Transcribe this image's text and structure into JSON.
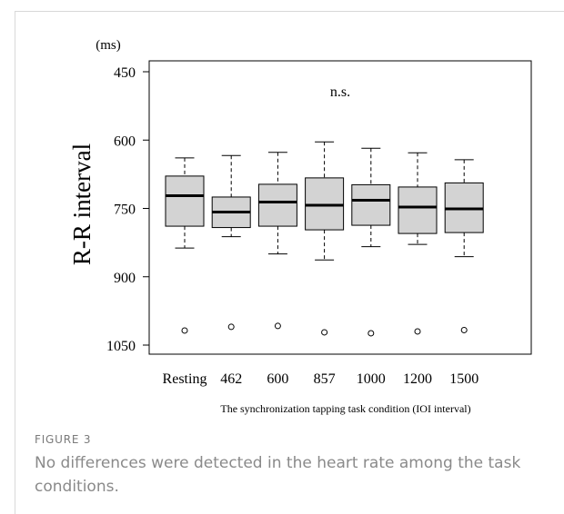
{
  "figure": {
    "label": "FIGURE 3",
    "caption": "No differences were detected in the heart rate among the task conditions."
  },
  "chart_data": {
    "type": "boxplot",
    "ylabel": "R-R interval",
    "yunit": "(ms)",
    "xlabel": "The synchronization tapping task condition (IOI interval)",
    "annotation": "n.s.",
    "ylim": [
      450,
      1070
    ],
    "y_inverted": true,
    "yticks": [
      "450",
      "600",
      "750",
      "900",
      "1050"
    ],
    "categories": [
      "Resting",
      "462",
      "600",
      "857",
      "1000",
      "1200",
      "1500"
    ],
    "boxes": [
      {
        "whisker_low": 639,
        "q1": 679,
        "median": 722,
        "q3": 789,
        "whisker_high": 837,
        "outliers": [
          1018
        ]
      },
      {
        "whisker_low": 634,
        "q1": 725,
        "median": 758,
        "q3": 792,
        "whisker_high": 812,
        "outliers": [
          1010
        ]
      },
      {
        "whisker_low": 627,
        "q1": 697,
        "median": 736,
        "q3": 789,
        "whisker_high": 850,
        "outliers": [
          1008
        ]
      },
      {
        "whisker_low": 604,
        "q1": 683,
        "median": 743,
        "q3": 797,
        "whisker_high": 863,
        "outliers": [
          1022
        ]
      },
      {
        "whisker_low": 618,
        "q1": 698,
        "median": 732,
        "q3": 787,
        "whisker_high": 834,
        "outliers": [
          1024
        ]
      },
      {
        "whisker_low": 628,
        "q1": 703,
        "median": 747,
        "q3": 805,
        "whisker_high": 829,
        "outliers": [
          1020
        ]
      },
      {
        "whisker_low": 643,
        "q1": 694,
        "median": 751,
        "q3": 803,
        "whisker_high": 856,
        "outliers": [
          1017
        ]
      }
    ],
    "box_fill": "#d3d3d3",
    "outlier_style": "open-circle",
    "grid": false,
    "legend": false
  }
}
